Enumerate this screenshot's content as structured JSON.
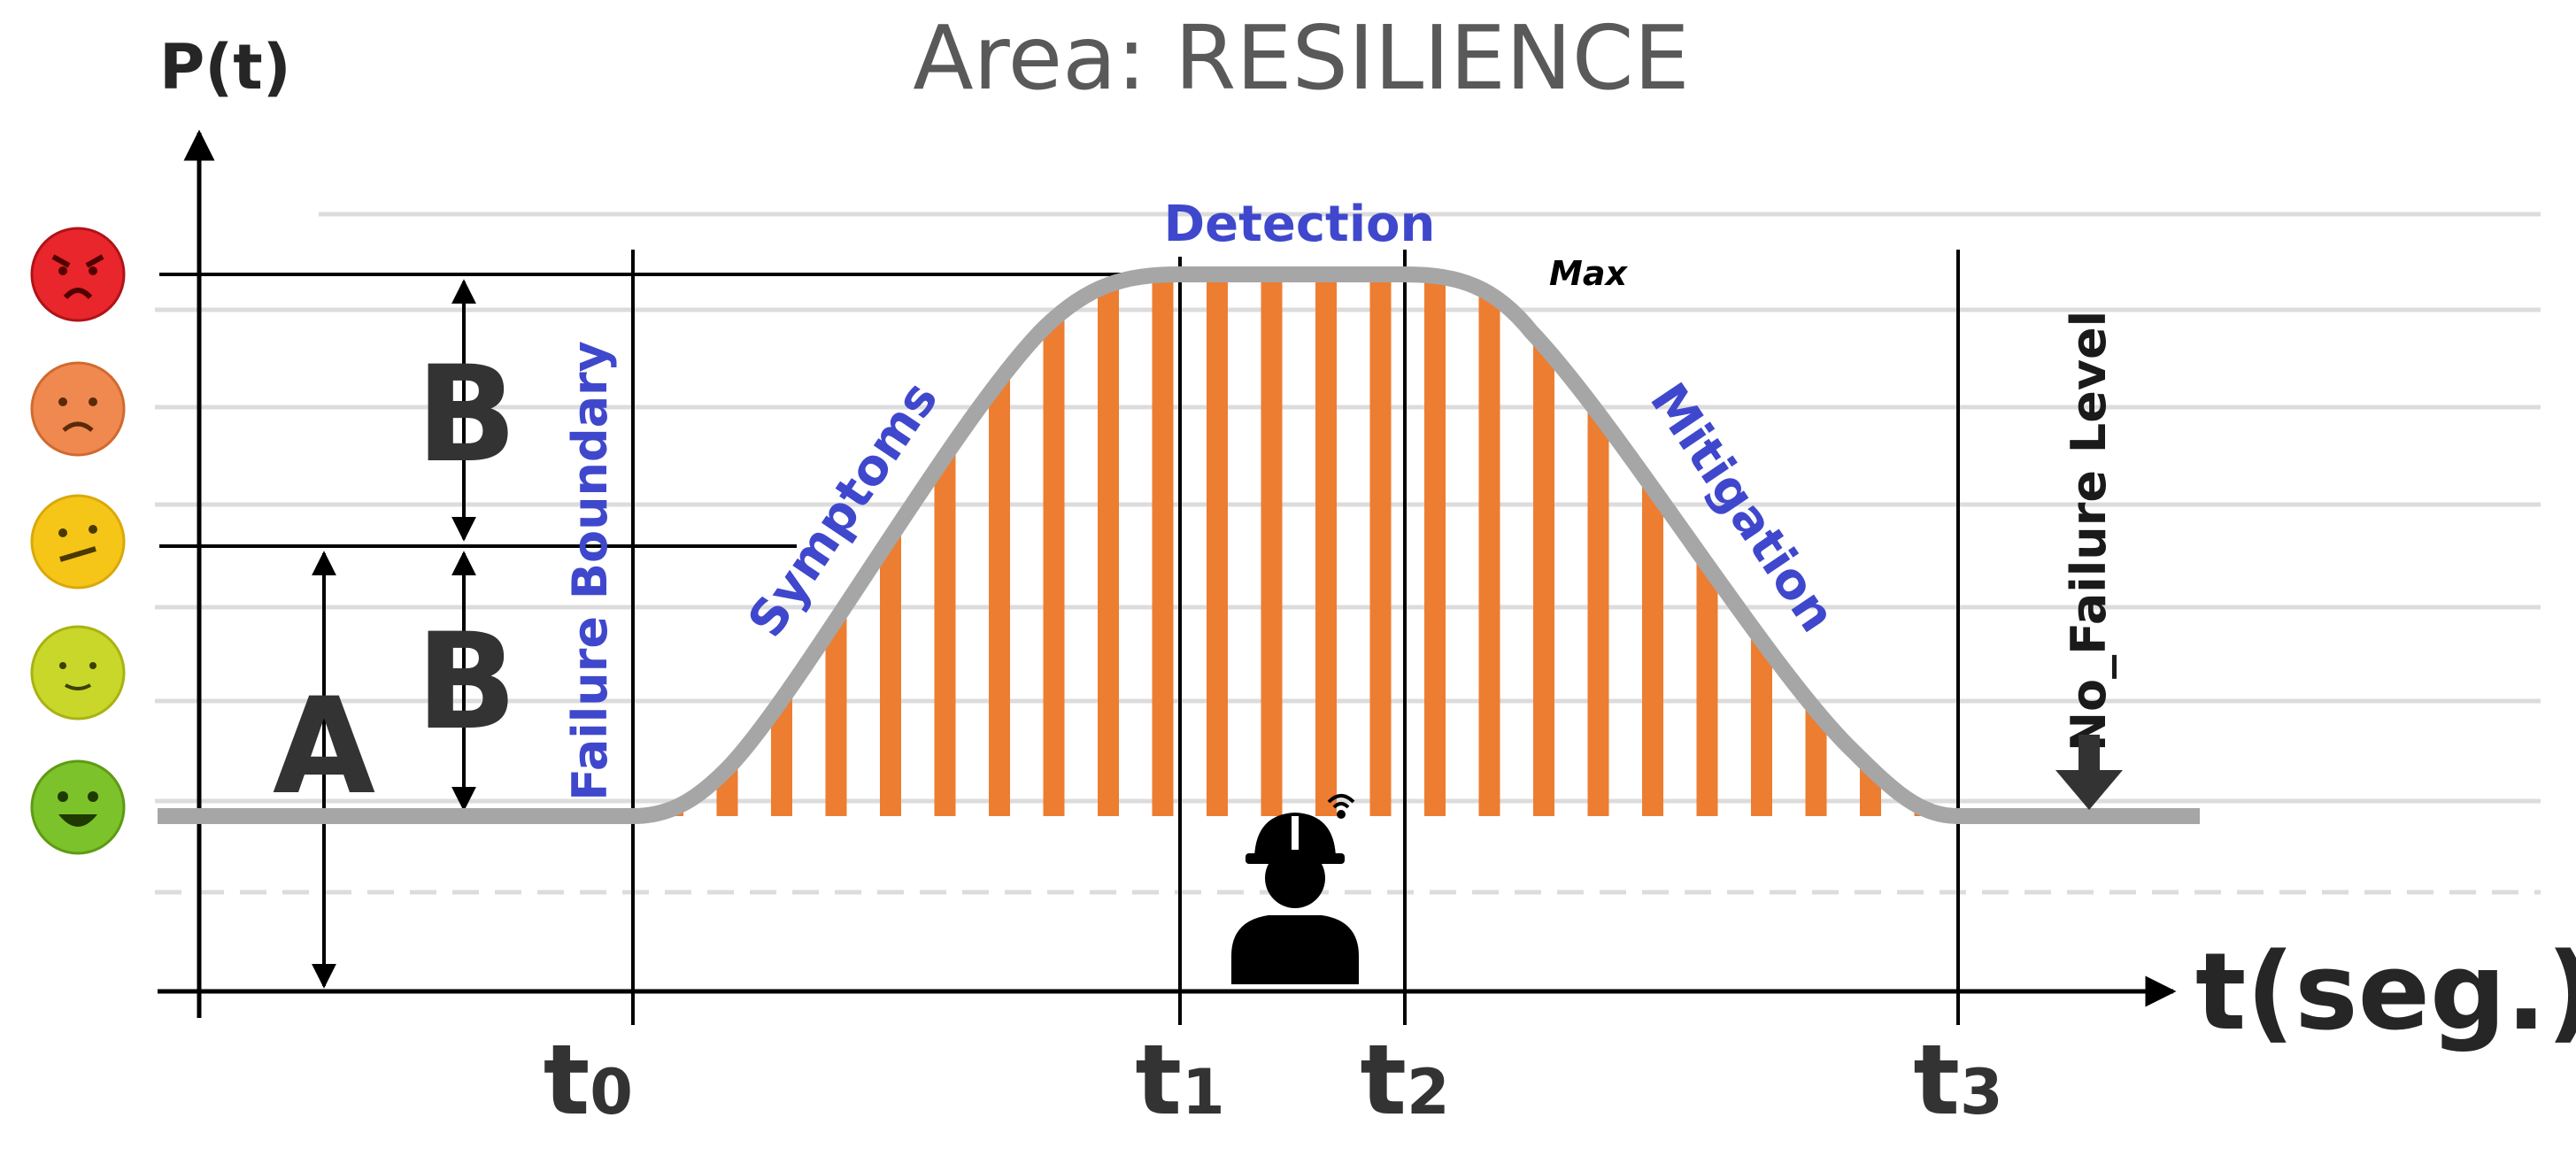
{
  "title": "Area: RESILIENCE",
  "y_axis_label": "P(t)",
  "x_axis_label": "t(seg.)",
  "phases": {
    "detection": "Detection",
    "symptoms": "Symptoms",
    "mitigation": "Mitigation"
  },
  "max_label": "Max",
  "failure_boundary_label": "Failure Boundary",
  "no_failure_level_label": "No_Failure Level",
  "dimension_labels": {
    "a": "A",
    "b_upper": "B",
    "b_lower": "B"
  },
  "time_marks": [
    {
      "name": "t0",
      "base": "t",
      "sub": "0"
    },
    {
      "name": "t1",
      "base": "t",
      "sub": "1"
    },
    {
      "name": "t2",
      "base": "t",
      "sub": "2"
    },
    {
      "name": "t3",
      "base": "t",
      "sub": "3"
    }
  ],
  "emoji_scale": [
    {
      "name": "angry-face-icon",
      "color": "#e8262b"
    },
    {
      "name": "sad-face-icon",
      "color": "#f0894f"
    },
    {
      "name": "confused-face-icon",
      "color": "#f5c518"
    },
    {
      "name": "neutral-face-icon",
      "color": "#c9d62a"
    },
    {
      "name": "happy-face-icon",
      "color": "#7cc22a"
    }
  ],
  "icons": {
    "worker": "worker-with-helmet-wifi-icon"
  },
  "colors": {
    "curve": "#a6a6a6",
    "fill_bars": "#ed7d31",
    "phase_text": "#3f48cc",
    "axis": "#000000"
  }
}
